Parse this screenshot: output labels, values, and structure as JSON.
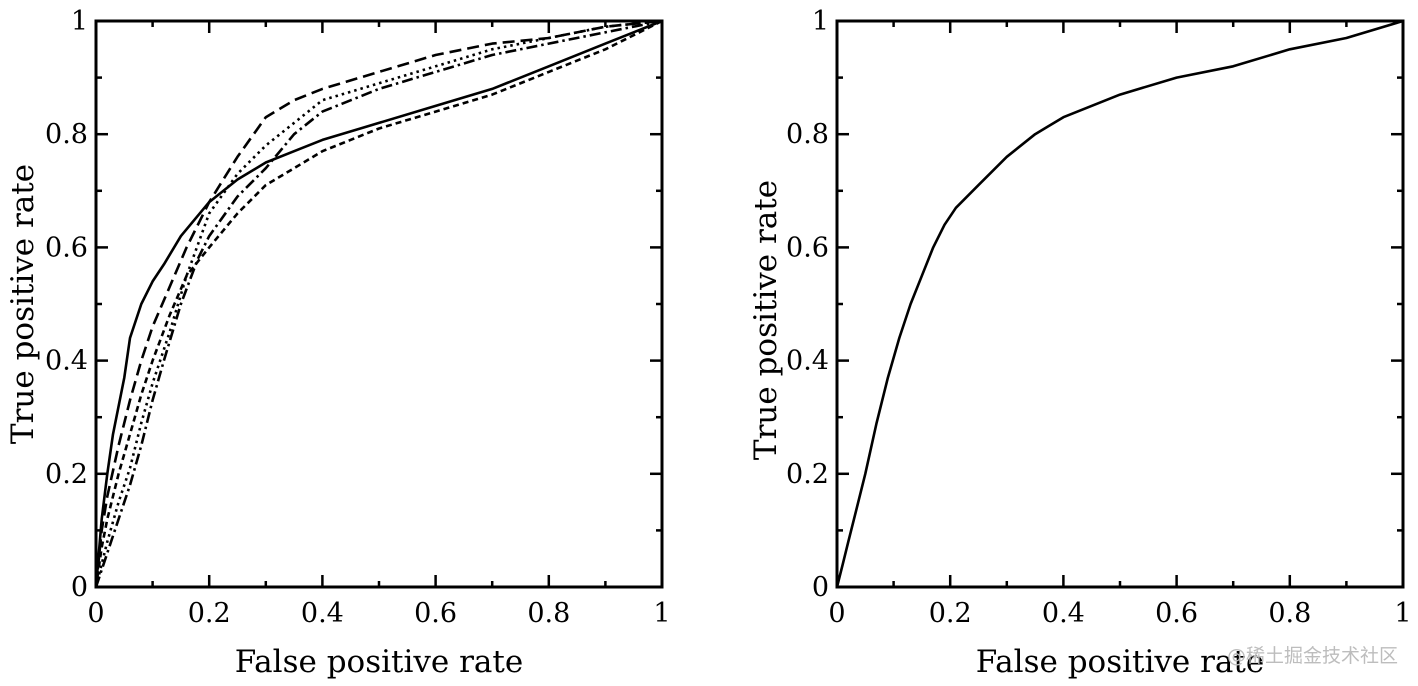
{
  "chart_data": [
    {
      "type": "line",
      "title": "",
      "xlabel": "False positive rate",
      "ylabel": "True positive rate",
      "xlim": [
        0,
        1
      ],
      "ylim": [
        0,
        1
      ],
      "xticks": [
        "0",
        "0.2",
        "0.4",
        "0.6",
        "0.8",
        "1"
      ],
      "yticks": [
        "0",
        "0.2",
        "0.4",
        "0.6",
        "0.8",
        "1"
      ],
      "grid": false,
      "series": [
        {
          "line_style": "solid",
          "x": [
            0,
            0.01,
            0.02,
            0.03,
            0.05,
            0.06,
            0.08,
            0.1,
            0.12,
            0.15,
            0.2,
            0.25,
            0.3,
            0.35,
            0.4,
            0.5,
            0.6,
            0.7,
            0.8,
            0.9,
            1.0
          ],
          "y": [
            0,
            0.12,
            0.2,
            0.27,
            0.37,
            0.44,
            0.5,
            0.54,
            0.57,
            0.62,
            0.68,
            0.72,
            0.75,
            0.77,
            0.79,
            0.82,
            0.85,
            0.88,
            0.92,
            0.96,
            1.0
          ]
        },
        {
          "line_style": "dashed",
          "x": [
            0,
            0.01,
            0.02,
            0.04,
            0.06,
            0.08,
            0.1,
            0.13,
            0.16,
            0.2,
            0.25,
            0.3,
            0.35,
            0.4,
            0.5,
            0.6,
            0.7,
            0.8,
            0.9,
            1.0
          ],
          "y": [
            0,
            0.1,
            0.16,
            0.25,
            0.33,
            0.4,
            0.46,
            0.53,
            0.6,
            0.68,
            0.76,
            0.83,
            0.86,
            0.88,
            0.91,
            0.94,
            0.96,
            0.97,
            0.99,
            1.0
          ]
        },
        {
          "line_style": "dotted",
          "x": [
            0,
            0.02,
            0.04,
            0.06,
            0.08,
            0.1,
            0.13,
            0.16,
            0.2,
            0.25,
            0.3,
            0.35,
            0.4,
            0.5,
            0.6,
            0.7,
            0.8,
            0.9,
            1.0
          ],
          "y": [
            0,
            0.08,
            0.15,
            0.21,
            0.29,
            0.36,
            0.45,
            0.55,
            0.66,
            0.73,
            0.78,
            0.82,
            0.86,
            0.89,
            0.92,
            0.95,
            0.97,
            0.99,
            1.0
          ]
        },
        {
          "line_style": "dash-dot",
          "x": [
            0,
            0.02,
            0.04,
            0.06,
            0.08,
            0.1,
            0.12,
            0.15,
            0.18,
            0.2,
            0.25,
            0.3,
            0.35,
            0.4,
            0.5,
            0.6,
            0.7,
            0.8,
            0.9,
            1.0
          ],
          "y": [
            0,
            0.06,
            0.12,
            0.18,
            0.25,
            0.33,
            0.4,
            0.5,
            0.58,
            0.62,
            0.69,
            0.74,
            0.8,
            0.84,
            0.88,
            0.91,
            0.94,
            0.96,
            0.98,
            1.0
          ]
        },
        {
          "line_style": "short-dashed",
          "x": [
            0,
            0.01,
            0.02,
            0.04,
            0.06,
            0.08,
            0.1,
            0.13,
            0.16,
            0.2,
            0.25,
            0.3,
            0.35,
            0.4,
            0.5,
            0.6,
            0.7,
            0.8,
            0.9,
            1.0
          ],
          "y": [
            0,
            0.07,
            0.12,
            0.2,
            0.27,
            0.34,
            0.4,
            0.48,
            0.55,
            0.6,
            0.66,
            0.71,
            0.74,
            0.77,
            0.81,
            0.84,
            0.87,
            0.91,
            0.95,
            1.0
          ]
        }
      ]
    },
    {
      "type": "line",
      "title": "",
      "xlabel": "False positive rate",
      "ylabel": "True positive rate",
      "xlim": [
        0,
        1
      ],
      "ylim": [
        0,
        1
      ],
      "xticks": [
        "0",
        "0.2",
        "0.4",
        "0.6",
        "0.8",
        "1"
      ],
      "yticks": [
        "0",
        "0.2",
        "0.4",
        "0.6",
        "0.8",
        "1"
      ],
      "grid": false,
      "series": [
        {
          "line_style": "solid",
          "x": [
            0,
            0.01,
            0.02,
            0.03,
            0.05,
            0.07,
            0.09,
            0.11,
            0.13,
            0.15,
            0.17,
            0.19,
            0.21,
            0.25,
            0.3,
            0.35,
            0.4,
            0.5,
            0.6,
            0.7,
            0.8,
            0.9,
            1.0
          ],
          "y": [
            0,
            0.04,
            0.08,
            0.12,
            0.2,
            0.29,
            0.37,
            0.44,
            0.5,
            0.55,
            0.6,
            0.64,
            0.67,
            0.71,
            0.76,
            0.8,
            0.83,
            0.87,
            0.9,
            0.92,
            0.95,
            0.97,
            1.0
          ]
        }
      ]
    }
  ],
  "watermark": "@稀土掘金技术社区"
}
